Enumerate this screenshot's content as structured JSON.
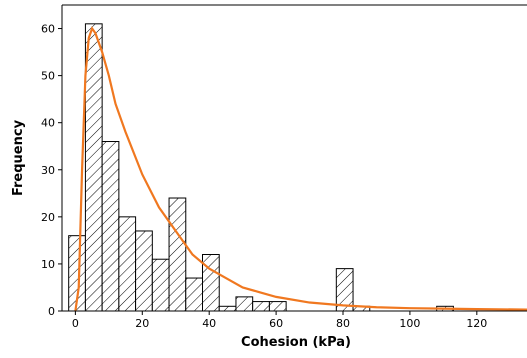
{
  "chart_data": {
    "type": "histogram",
    "xlabel": "Cohesion (kPa)",
    "ylabel": "Frequency",
    "xlim": [
      -4,
      135
    ],
    "ylim": [
      0,
      65
    ],
    "x_ticks": [
      0,
      20,
      40,
      60,
      80,
      100,
      120
    ],
    "y_ticks": [
      0,
      10,
      20,
      30,
      40,
      50,
      60
    ],
    "bin_width": 5,
    "bins": [
      {
        "x0": -2,
        "x1": 3,
        "count": 16
      },
      {
        "x0": 3,
        "x1": 8,
        "count": 61
      },
      {
        "x0": 8,
        "x1": 13,
        "count": 36
      },
      {
        "x0": 13,
        "x1": 18,
        "count": 20
      },
      {
        "x0": 18,
        "x1": 23,
        "count": 17
      },
      {
        "x0": 23,
        "x1": 28,
        "count": 11
      },
      {
        "x0": 28,
        "x1": 33,
        "count": 24
      },
      {
        "x0": 33,
        "x1": 38,
        "count": 7
      },
      {
        "x0": 38,
        "x1": 43,
        "count": 12
      },
      {
        "x0": 43,
        "x1": 48,
        "count": 1
      },
      {
        "x0": 48,
        "x1": 53,
        "count": 3
      },
      {
        "x0": 53,
        "x1": 58,
        "count": 2
      },
      {
        "x0": 58,
        "x1": 63,
        "count": 2
      },
      {
        "x0": 63,
        "x1": 68,
        "count": 0
      },
      {
        "x0": 68,
        "x1": 73,
        "count": 0
      },
      {
        "x0": 73,
        "x1": 78,
        "count": 0
      },
      {
        "x0": 78,
        "x1": 83,
        "count": 9
      },
      {
        "x0": 83,
        "x1": 88,
        "count": 1
      },
      {
        "x0": 88,
        "x1": 93,
        "count": 0
      },
      {
        "x0": 93,
        "x1": 98,
        "count": 0
      },
      {
        "x0": 98,
        "x1": 103,
        "count": 0
      },
      {
        "x0": 103,
        "x1": 108,
        "count": 0
      },
      {
        "x0": 108,
        "x1": 113,
        "count": 1
      }
    ],
    "fitted_curve": {
      "color": "#f07820",
      "points": [
        [
          0,
          0
        ],
        [
          1,
          5
        ],
        [
          2,
          30
        ],
        [
          3,
          50
        ],
        [
          4,
          58
        ],
        [
          5,
          60
        ],
        [
          6,
          59
        ],
        [
          8,
          55
        ],
        [
          10,
          50
        ],
        [
          12,
          44
        ],
        [
          15,
          38
        ],
        [
          20,
          29
        ],
        [
          25,
          22
        ],
        [
          30,
          17
        ],
        [
          35,
          12
        ],
        [
          40,
          9
        ],
        [
          45,
          7
        ],
        [
          50,
          5
        ],
        [
          55,
          4
        ],
        [
          60,
          3
        ],
        [
          70,
          1.8
        ],
        [
          80,
          1.2
        ],
        [
          90,
          0.8
        ],
        [
          100,
          0.6
        ],
        [
          110,
          0.5
        ],
        [
          120,
          0.4
        ],
        [
          135,
          0.3
        ]
      ]
    },
    "bar_fill": "#ffffff",
    "bar_stroke": "#000000"
  }
}
